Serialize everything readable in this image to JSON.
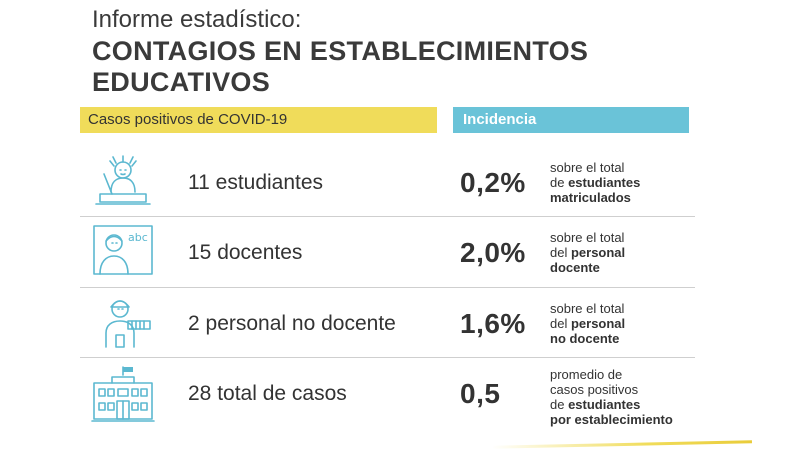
{
  "kicker": "Informe estadístico:",
  "title": "CONTAGIOS EN ESTABLECIMIENTOS EDUCATIVOS",
  "headers": {
    "left": "Casos positivos de COVID-19",
    "right": "Incidencia"
  },
  "colors": {
    "yellow": "#f0dc5a",
    "blue": "#6ac3d8",
    "icon_stroke": "#5bb8d0",
    "text": "#3a3a3a"
  },
  "rows": [
    {
      "icon": "student-icon",
      "count": "11 estudiantes",
      "pct": "0,2%",
      "desc1": "sobre el total",
      "desc2_pre": "de ",
      "desc2_bold": "estudiantes",
      "desc3_bold": "matriculados",
      "desc4_bold": ""
    },
    {
      "icon": "teacher-icon",
      "board_text": "abc",
      "count": "15 docentes",
      "pct": "2,0%",
      "desc1": "sobre el total",
      "desc2_pre": "del ",
      "desc2_bold": "personal",
      "desc3_bold": "docente",
      "desc4_bold": ""
    },
    {
      "icon": "worker-icon",
      "count": "2 personal no docente",
      "pct": "1,6%",
      "desc1": "sobre el total",
      "desc2_pre": "del ",
      "desc2_bold": "personal",
      "desc3_bold": "no docente",
      "desc4_bold": ""
    },
    {
      "icon": "school-building-icon",
      "count": "28 total de casos",
      "pct": "0,5",
      "desc1": "promedio de",
      "desc2_pre": "casos positivos",
      "desc2_bold": "",
      "desc3_pre": "de ",
      "desc3_bold": "estudiantes",
      "desc4_bold": "por establecimiento"
    }
  ]
}
